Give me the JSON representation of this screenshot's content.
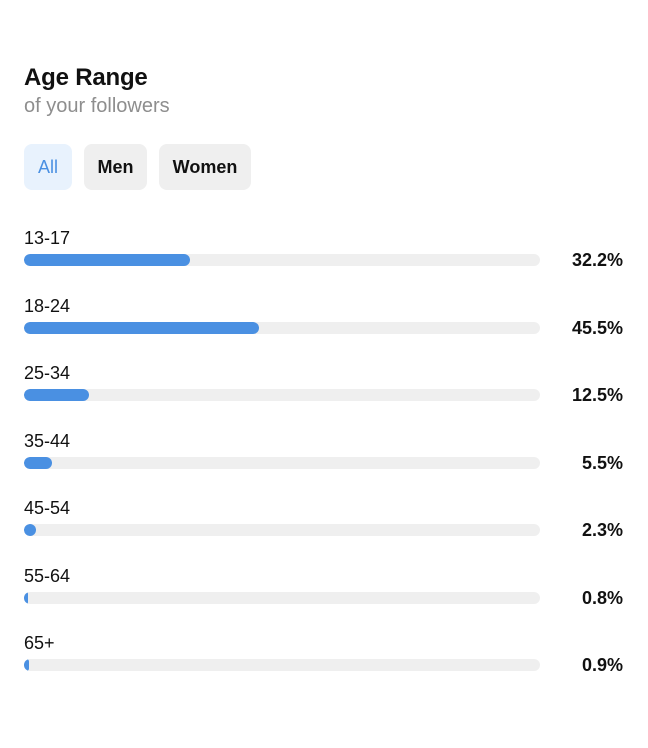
{
  "header": {
    "title": "Age Range",
    "subtitle": "of your followers"
  },
  "tabs": [
    {
      "label": "All",
      "active": true
    },
    {
      "label": "Men",
      "active": false
    },
    {
      "label": "Women",
      "active": false
    }
  ],
  "colors": {
    "accent": "#4a90e2",
    "track": "#efefef",
    "active_tab_bg": "#e8f2fd"
  },
  "chart_data": {
    "type": "bar",
    "orientation": "horizontal",
    "categories": [
      "13-17",
      "18-24",
      "25-34",
      "35-44",
      "45-54",
      "55-64",
      "65+"
    ],
    "values": [
      32.2,
      45.5,
      12.5,
      5.5,
      2.3,
      0.8,
      0.9
    ],
    "value_labels": [
      "32.2%",
      "45.5%",
      "12.5%",
      "5.5%",
      "2.3%",
      "0.8%",
      "0.9%"
    ],
    "xlim": [
      0,
      100
    ],
    "grid": false
  }
}
